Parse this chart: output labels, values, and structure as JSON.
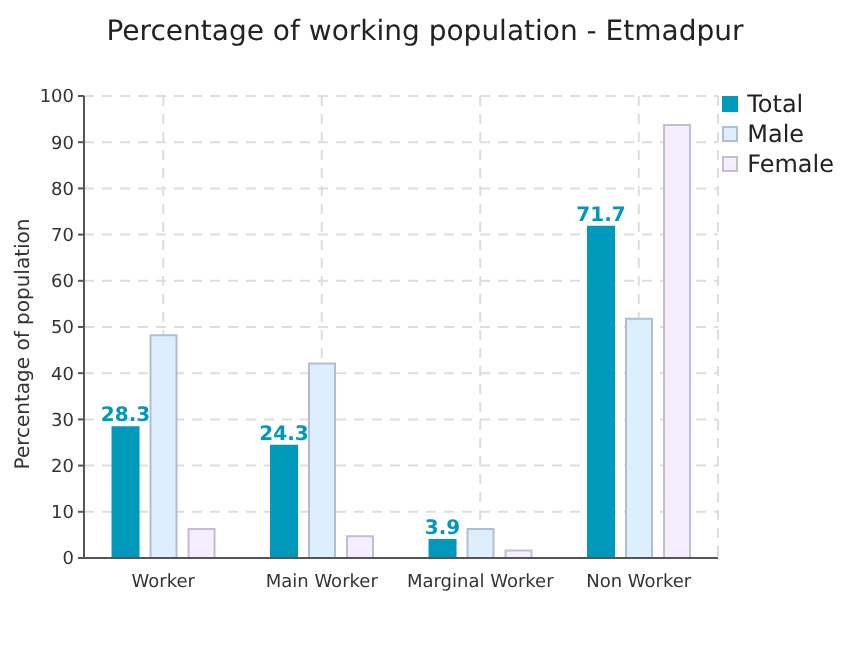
{
  "chart_data": {
    "type": "bar",
    "title": "Percentage of working population - Etmadpur",
    "ylabel": "Percentage of population",
    "categories": [
      "Worker",
      "Main Worker",
      "Marginal Worker",
      "Non Worker"
    ],
    "series": [
      {
        "name": "Total",
        "color": "#0099bb",
        "values": [
          28.3,
          24.3,
          3.9,
          71.7
        ],
        "value_labels": [
          "28.3",
          "24.3",
          "3.9",
          "71.7"
        ]
      },
      {
        "name": "Male",
        "color": "#ddeeff",
        "values": [
          48.2,
          42.1,
          6.3,
          51.8
        ]
      },
      {
        "name": "Female",
        "color": "#f5eeff",
        "values": [
          6.3,
          4.7,
          1.6,
          93.7
        ]
      }
    ],
    "ylim": [
      0,
      100
    ],
    "yticks": [
      0,
      10,
      20,
      30,
      40,
      50,
      60,
      70,
      80,
      90,
      100
    ],
    "grid": true,
    "legend": "top right"
  }
}
